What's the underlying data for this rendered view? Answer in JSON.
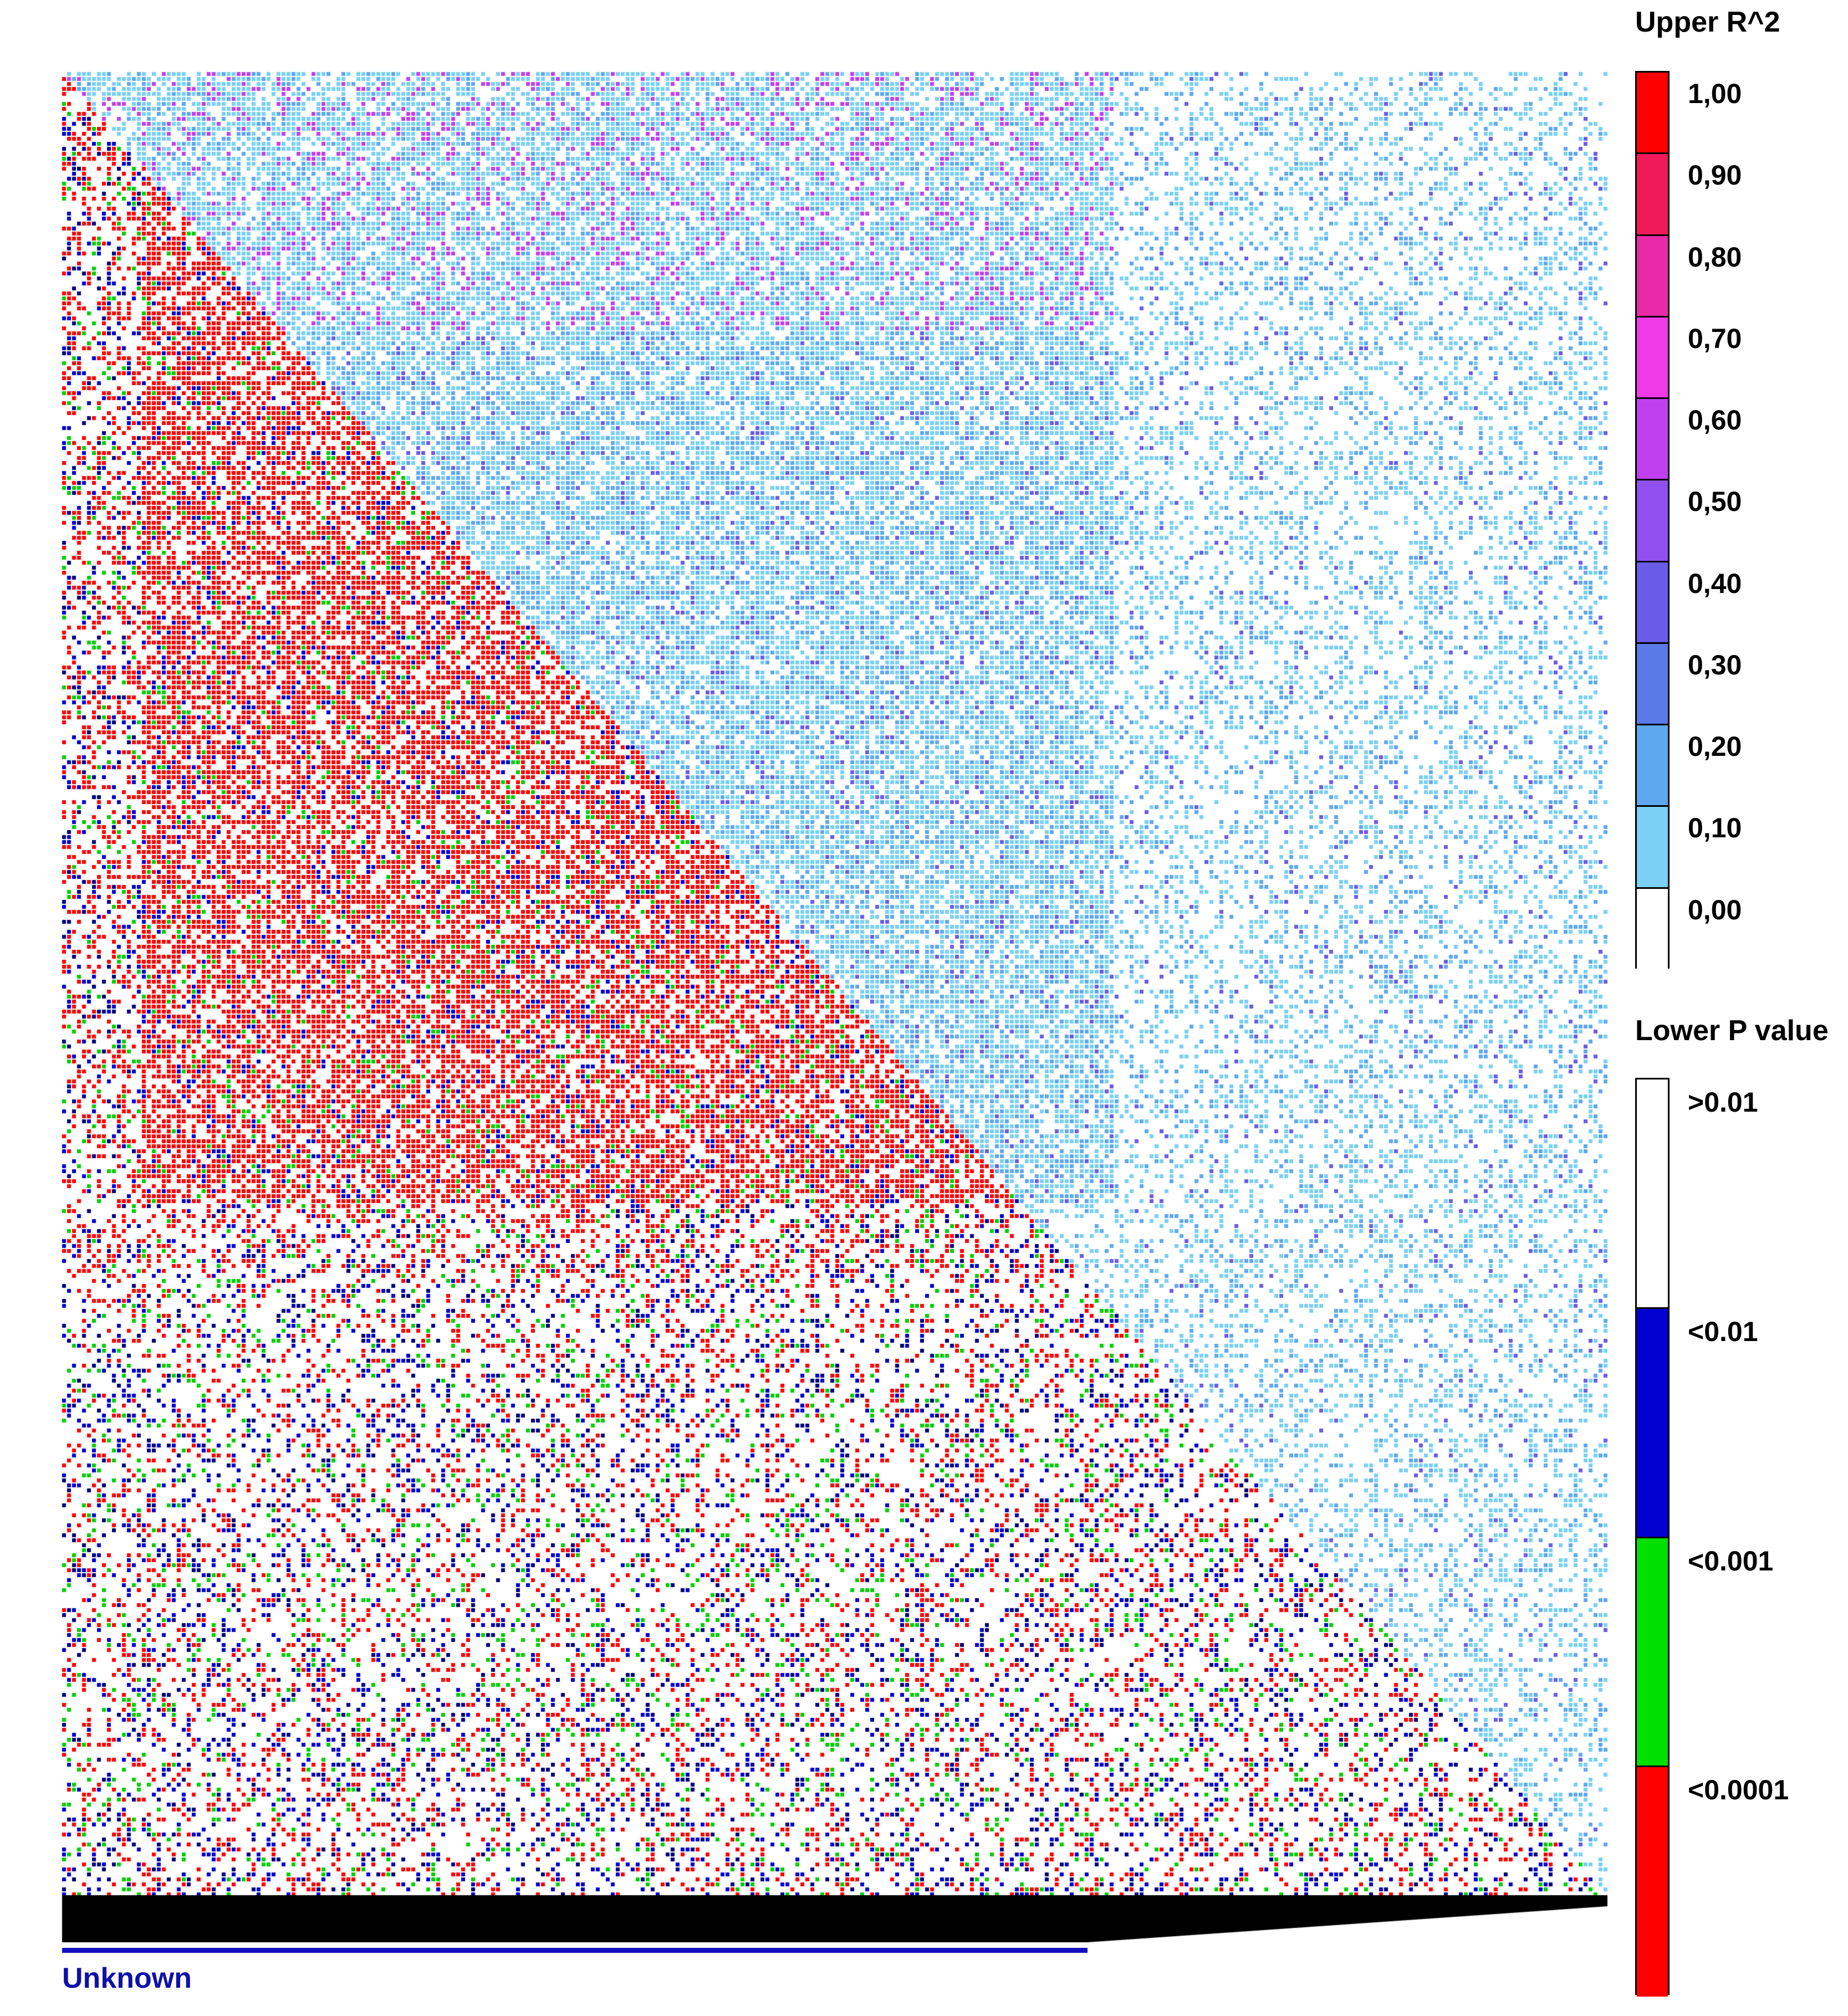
{
  "chart_data": {
    "type": "heatmap",
    "title": "",
    "xlabel": "",
    "ylabel": "",
    "grid": false,
    "legend_placement": "right",
    "upper_legend": {
      "title": "Upper R^2",
      "ticks": [
        "1,00",
        "0,90",
        "0,80",
        "0,70",
        "0,60",
        "0,50",
        "0,40",
        "0,30",
        "0,20",
        "0,10",
        "0,00"
      ],
      "colors": [
        "#ff0000",
        "#f01a5a",
        "#e82aa8",
        "#f03ae8",
        "#c040f0",
        "#9050ef",
        "#6a5ce8",
        "#5a7ae8",
        "#5ea8f0",
        "#7ad0f5",
        "#ffffff"
      ]
    },
    "lower_legend": {
      "title": "Lower P value",
      "categories": [
        ">0.01",
        "<0.01",
        "<0.001",
        "<0.0001"
      ],
      "colors": [
        "#ffffff",
        "#0000d0",
        "#00e000",
        "#ff0000"
      ]
    },
    "region_label": "Unknown"
  }
}
